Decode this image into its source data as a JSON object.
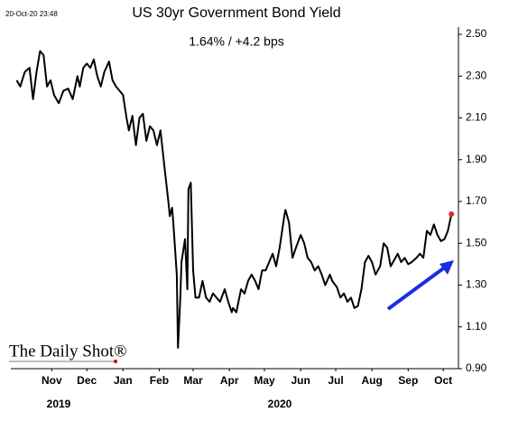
{
  "chart_data": {
    "type": "line",
    "timestamp": "20-Oct-20 23:48",
    "title": "US 30yr Government Bond Yield",
    "subtitle": "1.64%  /  +4.2 bps",
    "source": "The Daily Shot®",
    "years": [
      "2019",
      "2020"
    ],
    "xlim": [
      10,
      393
    ],
    "xticks": [
      {
        "value": 45,
        "label": "Nov"
      },
      {
        "value": 75,
        "label": "Dec"
      },
      {
        "value": 106,
        "label": "Jan"
      },
      {
        "value": 137,
        "label": "Feb"
      },
      {
        "value": 166,
        "label": "Mar"
      },
      {
        "value": 197,
        "label": "Apr"
      },
      {
        "value": 227,
        "label": "May"
      },
      {
        "value": 258,
        "label": "Jun"
      },
      {
        "value": 288,
        "label": "Jul"
      },
      {
        "value": 319,
        "label": "Aug"
      },
      {
        "value": 350,
        "label": "Sep"
      },
      {
        "value": 380,
        "label": "Oct"
      }
    ],
    "ylim": [
      0.9,
      2.5
    ],
    "yticks": [
      {
        "value": 0.9,
        "label": "0.90"
      },
      {
        "value": 1.1,
        "label": "1.10"
      },
      {
        "value": 1.3,
        "label": "1.30"
      },
      {
        "value": 1.5,
        "label": "1.50"
      },
      {
        "value": 1.7,
        "label": "1.70"
      },
      {
        "value": 1.9,
        "label": "1.90"
      },
      {
        "value": 2.1,
        "label": "2.10"
      },
      {
        "value": 2.3,
        "label": "2.30"
      },
      {
        "value": 2.5,
        "label": "2.50"
      }
    ],
    "series": [
      {
        "color": "#000000",
        "last_point_color": "#e8282b",
        "x": [
          15,
          18,
          22,
          26,
          29,
          32,
          35,
          38,
          41,
          44,
          47,
          51,
          55,
          59,
          63,
          67,
          69,
          72,
          75,
          78,
          81,
          84,
          87,
          90,
          94,
          97,
          100,
          103,
          106,
          109,
          111,
          114,
          117,
          120,
          123,
          126,
          129,
          132,
          135,
          138,
          142,
          145,
          146,
          148,
          149,
          152,
          153,
          155,
          156,
          159,
          161,
          162,
          164,
          166,
          168,
          171,
          174,
          177,
          180,
          183,
          186,
          189,
          193,
          196,
          199,
          200,
          203,
          207,
          210,
          213,
          216,
          219,
          222,
          225,
          228,
          231,
          234,
          237,
          240,
          244,
          245,
          248,
          251,
          254,
          258,
          261,
          264,
          267,
          270,
          273,
          276,
          279,
          283,
          285,
          289,
          292,
          295,
          298,
          301,
          304,
          307,
          310,
          313,
          316,
          319,
          322,
          326,
          329,
          332,
          335,
          338,
          341,
          344,
          347,
          350,
          353,
          357,
          360,
          363,
          366,
          369,
          372,
          375,
          378,
          381,
          384,
          387
        ],
        "values": [
          2.28,
          2.25,
          2.32,
          2.34,
          2.19,
          2.32,
          2.42,
          2.4,
          2.25,
          2.28,
          2.21,
          2.17,
          2.23,
          2.24,
          2.19,
          2.3,
          2.25,
          2.34,
          2.36,
          2.34,
          2.38,
          2.3,
          2.25,
          2.32,
          2.37,
          2.28,
          2.25,
          2.23,
          2.21,
          2.1,
          2.04,
          2.11,
          1.97,
          2.1,
          2.12,
          1.99,
          2.06,
          2.04,
          1.97,
          2.04,
          1.84,
          1.69,
          1.63,
          1.67,
          1.6,
          1.35,
          1.0,
          1.24,
          1.41,
          1.52,
          1.28,
          1.76,
          1.79,
          1.37,
          1.24,
          1.24,
          1.32,
          1.24,
          1.22,
          1.26,
          1.24,
          1.22,
          1.28,
          1.22,
          1.17,
          1.19,
          1.17,
          1.28,
          1.26,
          1.32,
          1.35,
          1.32,
          1.28,
          1.37,
          1.37,
          1.41,
          1.45,
          1.39,
          1.48,
          1.63,
          1.66,
          1.6,
          1.43,
          1.48,
          1.54,
          1.5,
          1.43,
          1.41,
          1.37,
          1.39,
          1.35,
          1.3,
          1.35,
          1.32,
          1.29,
          1.24,
          1.26,
          1.22,
          1.24,
          1.19,
          1.2,
          1.28,
          1.41,
          1.44,
          1.41,
          1.35,
          1.39,
          1.5,
          1.48,
          1.39,
          1.42,
          1.45,
          1.41,
          1.43,
          1.4,
          1.41,
          1.43,
          1.45,
          1.43,
          1.56,
          1.54,
          1.59,
          1.54,
          1.51,
          1.52,
          1.56,
          1.64
        ]
      }
    ]
  }
}
